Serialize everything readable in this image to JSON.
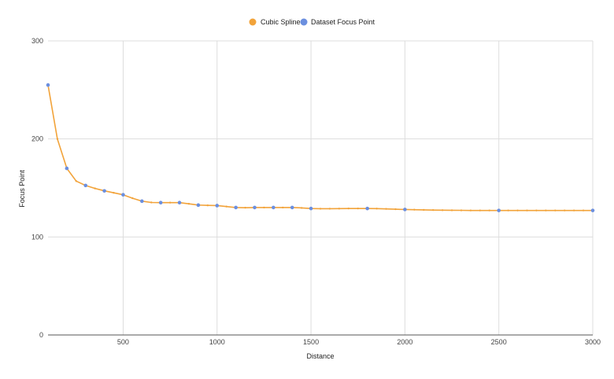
{
  "chart_data": {
    "type": "line",
    "title": "",
    "xlabel": "Distance",
    "ylabel": "Focus Point",
    "xlim": [
      100,
      3000
    ],
    "ylim": [
      0,
      300
    ],
    "x_ticks": [
      500,
      1000,
      1500,
      2000,
      2500,
      3000
    ],
    "y_ticks": [
      0,
      100,
      200,
      300
    ],
    "grid": true,
    "legend_position": "top",
    "legend": [
      {
        "name": "Cubic Spline",
        "color": "#f2a33a"
      },
      {
        "name": "Dataset Focus Point",
        "color": "#6b8fdf"
      }
    ],
    "series": [
      {
        "name": "Dataset Focus Point",
        "type": "scatter",
        "color": "#6b8fdf",
        "x": [
          100,
          200,
          300,
          400,
          500,
          600,
          700,
          800,
          900,
          1000,
          1100,
          1200,
          1300,
          1400,
          1500,
          1800,
          2000,
          2500,
          3000
        ],
        "y": [
          255,
          170,
          152.5,
          147,
          143,
          136.5,
          135,
          135,
          132.5,
          132,
          130,
          130,
          130,
          130,
          129,
          129,
          128,
          127,
          127
        ]
      },
      {
        "name": "Cubic Spline",
        "type": "line",
        "color": "#f2a33a",
        "x": [
          100,
          150,
          200,
          250,
          300,
          350,
          400,
          450,
          500,
          550,
          600,
          650,
          700,
          750,
          800,
          850,
          900,
          950,
          1000,
          1050,
          1100,
          1150,
          1200,
          1250,
          1300,
          1350,
          1400,
          1450,
          1500,
          1550,
          1600,
          1650,
          1700,
          1750,
          1800,
          1850,
          1900,
          1950,
          2000,
          2050,
          2100,
          2150,
          2200,
          2250,
          2300,
          2350,
          2400,
          2450,
          2500,
          2550,
          2600,
          2650,
          2700,
          2750,
          2800,
          2850,
          2900,
          2950,
          3000
        ],
        "y": [
          255,
          200,
          170,
          157,
          152.5,
          149.5,
          147,
          145,
          143,
          139.5,
          136.5,
          135.2,
          135,
          135,
          135,
          133.8,
          132.5,
          132.2,
          132,
          131,
          130,
          129.8,
          130,
          130,
          130,
          130,
          130,
          129.6,
          129,
          128.8,
          128.8,
          128.9,
          129,
          129,
          129,
          128.9,
          128.6,
          128.3,
          128,
          127.8,
          127.6,
          127.4,
          127.3,
          127.2,
          127.1,
          127,
          127,
          127,
          127,
          127,
          127,
          127,
          127,
          127,
          127,
          127,
          127,
          127,
          127
        ]
      }
    ]
  },
  "legend": {
    "items": [
      {
        "label": "Cubic Spline",
        "color": "#f2a33a"
      },
      {
        "label": "Dataset Focus Point",
        "color": "#6b8fdf"
      }
    ]
  },
  "axes": {
    "x_title": "Distance",
    "y_title": "Focus Point"
  }
}
